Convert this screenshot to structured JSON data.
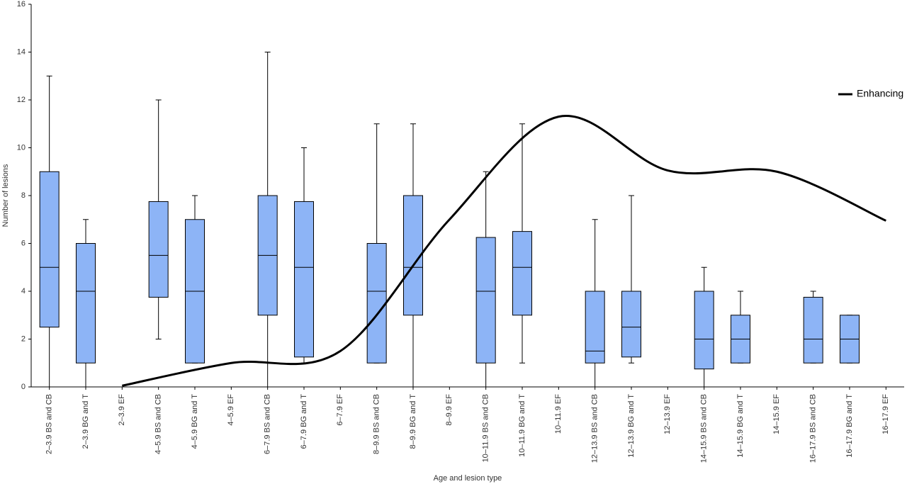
{
  "chart_data": {
    "type": "box",
    "x_label": "Age and lesion type",
    "y_label": "Number of lesions",
    "categories": [
      "2–3.9 BS and CB",
      "2–3.9 BG and T",
      "2–3.9 EF",
      "4–5.9 BS and CB",
      "4–5.9 BG and T",
      "4–5.9 EF",
      "6–7.9 BS and CB",
      "6–7.9 BG and T",
      "6–7.9 EF",
      "8–9.9 BS and CB",
      "8–9.9 BG and T",
      "8–9.9 EF",
      "10–11.9 BS and CB",
      "10–11.9 BG and T",
      "10–11.9 EF",
      "12–13.9 BS and CB",
      "12–13.9 BG and T",
      "12–13.9 EF",
      "14–15.9 BS and CB",
      "14–15.9 BG and T",
      "14–15.9 EF",
      "16–17.9 BS and CB",
      "16–17.9 BG and T",
      "16–17.9 EF"
    ],
    "boxes": {
      "color": "#8db4f6",
      "min": [
        0,
        0,
        null,
        2,
        1,
        null,
        0,
        1,
        null,
        1,
        0,
        null,
        0,
        1,
        null,
        0,
        1,
        null,
        0,
        1,
        null,
        1,
        1,
        null
      ],
      "q1": [
        2.5,
        1,
        null,
        3.75,
        1,
        null,
        3,
        1.25,
        null,
        1,
        3,
        null,
        1,
        3,
        null,
        1,
        1.25,
        null,
        0.75,
        1,
        null,
        1,
        1,
        null
      ],
      "median": [
        5,
        4,
        null,
        5.5,
        4,
        null,
        5.5,
        5,
        null,
        4,
        5,
        null,
        4,
        5,
        null,
        1.5,
        2.5,
        null,
        2,
        2,
        null,
        2,
        2,
        null
      ],
      "q3": [
        9,
        6,
        null,
        7.75,
        7,
        null,
        8,
        7.75,
        null,
        6,
        8,
        null,
        6.25,
        6.5,
        null,
        4,
        4,
        null,
        4,
        3,
        null,
        3.75,
        3,
        null
      ],
      "max": [
        13,
        7,
        null,
        12,
        8,
        null,
        14,
        10,
        null,
        11,
        11,
        null,
        9,
        11,
        null,
        7,
        8,
        null,
        5,
        4,
        null,
        4,
        3,
        null
      ]
    },
    "line": {
      "name": "Enhancing",
      "color": "#000000",
      "x": [
        "2–3.9 EF",
        "4–5.9 EF",
        "6–7.9 EF",
        "8–9.9 EF",
        "10–11.9 EF",
        "12–13.9 EF",
        "14–15.9 EF",
        "16–17.9 EF"
      ],
      "values": [
        0.05,
        1.0,
        1.5,
        7.0,
        11.3,
        9.05,
        9.0,
        6.95
      ]
    },
    "ylim": [
      0,
      16
    ],
    "yticks": [
      0,
      2,
      4,
      6,
      8,
      10,
      12,
      14,
      16
    ],
    "grid": false,
    "legend": "top-right"
  }
}
